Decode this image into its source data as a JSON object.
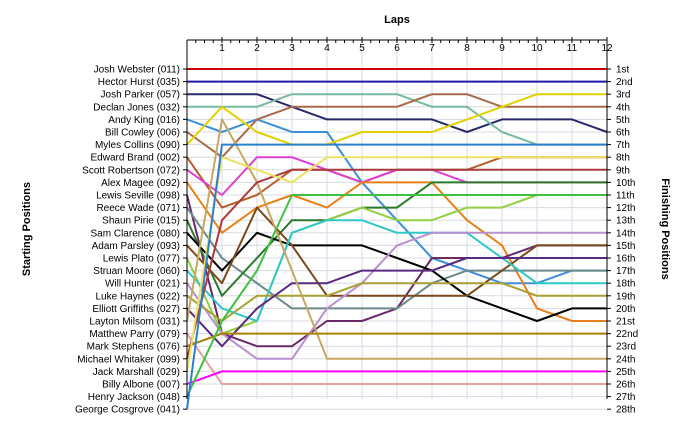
{
  "chart_data": {
    "type": "line",
    "title": "",
    "xlabel": "Laps",
    "ylabel_left": "Starting Positions",
    "ylabel_right": "Finishing Positions",
    "laps": [
      "1",
      "2",
      "3",
      "4",
      "5",
      "6",
      "7",
      "8",
      "9",
      "10",
      "11",
      "12"
    ],
    "x": [
      0,
      1,
      2,
      3,
      4,
      5,
      6,
      7,
      8,
      9,
      10,
      11,
      12
    ],
    "ylim": [
      1,
      28
    ],
    "starting_labels": [
      "Josh Webster (011)",
      "Hector Hurst (035)",
      "Josh Parker (057)",
      "Declan Jones (032)",
      "Andy King (016)",
      "Bill Cowley (006)",
      "Myles Collins (090)",
      "Edward Brand (002)",
      "Scott Robertson (072)",
      "Alex Magee (092)",
      "Lewis Seville (098)",
      "Reece Wade (071)",
      "Shaun Pirie (015)",
      "Sam Clarence (080)",
      "Adam Parsley (093)",
      "Lewis Plato (077)",
      "Struan Moore (060)",
      "Will Hunter (021)",
      "Luke Haynes (022)",
      "Elliott Griffiths (027)",
      "Layton Milsom (031)",
      "Matthew Parry (079)",
      "Mark Stephens (076)",
      "Michael Whitaker (099)",
      "Jack Marshall (029)",
      "Billy Albone (007)",
      "Henry Jackson (048)",
      "George Cosgrove (041)"
    ],
    "finishing_labels": [
      "1st",
      "2nd",
      "3rd",
      "4th",
      "5th",
      "6th",
      "7th",
      "8th",
      "9th",
      "10th",
      "11th",
      "12th",
      "13th",
      "14th",
      "15th",
      "16th",
      "17th",
      "18th",
      "19th",
      "20th",
      "21st",
      "22nd",
      "23rd",
      "24th",
      "25th",
      "26th",
      "27th",
      "28th"
    ],
    "series": [
      {
        "color": "#cc0000",
        "values": [
          1,
          1,
          1,
          1,
          1,
          1,
          1,
          1,
          1,
          1,
          1,
          1,
          1
        ]
      },
      {
        "color": "#1a1aaa",
        "values": [
          2,
          2,
          2,
          2,
          2,
          2,
          2,
          2,
          2,
          2,
          2,
          2,
          2
        ]
      },
      {
        "color": "#2a2a6a",
        "values": [
          3,
          3,
          3,
          4,
          5,
          5,
          5,
          5,
          6,
          5,
          5,
          5,
          6
        ]
      },
      {
        "color": "#76bba0",
        "values": [
          4,
          4,
          4,
          3,
          3,
          3,
          3,
          4,
          4,
          6,
          7,
          7,
          7
        ]
      },
      {
        "color": "#3c8fdc",
        "values": [
          5,
          6,
          5,
          6,
          6,
          10,
          13,
          16,
          17,
          18,
          18,
          17,
          17
        ]
      },
      {
        "color": "#a86a4a",
        "values": [
          6,
          8,
          5,
          4,
          4,
          4,
          4,
          3,
          3,
          4,
          4,
          4,
          4
        ]
      },
      {
        "color": "#e3d000",
        "values": [
          7,
          4,
          6,
          7,
          7,
          6,
          6,
          6,
          5,
          4,
          3,
          3,
          3
        ]
      },
      {
        "color": "#b85c28",
        "values": [
          8,
          12,
          11,
          9,
          9,
          10,
          9,
          9,
          9,
          8,
          8,
          8,
          8
        ]
      },
      {
        "color": "#dd3fd6",
        "values": [
          9,
          11,
          8,
          8,
          9,
          10,
          9,
          9,
          10,
          10,
          10,
          10,
          10
        ]
      },
      {
        "color": "#e8801a",
        "values": [
          10,
          14,
          12,
          11,
          12,
          10,
          10,
          10,
          13,
          15,
          20,
          21,
          21
        ]
      },
      {
        "color": "#6a2a6a",
        "values": [
          11,
          22,
          23,
          23,
          21,
          21,
          20,
          16,
          16,
          16,
          15,
          15,
          15
        ]
      },
      {
        "color": "#6a8a8a",
        "values": [
          12,
          16,
          18,
          20,
          20,
          20,
          20,
          18,
          17,
          17,
          17,
          17,
          17
        ]
      },
      {
        "color": "#2a7a2a",
        "values": [
          13,
          19,
          16,
          13,
          13,
          12,
          12,
          10,
          10,
          10,
          10,
          10,
          10
        ]
      },
      {
        "color": "#000000",
        "values": [
          14,
          17,
          14,
          15,
          15,
          15,
          16,
          17,
          19,
          20,
          21,
          20,
          20
        ]
      },
      {
        "color": "#7a4a1a",
        "values": [
          15,
          18,
          12,
          15,
          19,
          19,
          19,
          19,
          19,
          17,
          15,
          15,
          15
        ]
      },
      {
        "color": "#90d040",
        "values": [
          16,
          22,
          21,
          14,
          13,
          12,
          13,
          13,
          12,
          12,
          11,
          11,
          11
        ]
      },
      {
        "color": "#2ec8c8",
        "values": [
          17,
          20,
          21,
          14,
          13,
          13,
          14,
          14,
          14,
          16,
          18,
          18,
          18
        ]
      },
      {
        "color": "#b98fd0",
        "values": [
          18,
          22,
          24,
          24,
          20,
          18,
          15,
          14,
          14,
          14,
          14,
          14,
          14
        ]
      },
      {
        "color": "#a8a030",
        "values": [
          19,
          21,
          19,
          19,
          19,
          18,
          18,
          18,
          18,
          18,
          19,
          19,
          19
        ]
      },
      {
        "color": "#5a2a80",
        "values": [
          20,
          23,
          20,
          18,
          18,
          17,
          17,
          17,
          16,
          16,
          16,
          16,
          16
        ]
      },
      {
        "color": "#c8a860",
        "values": [
          21,
          5,
          10,
          17,
          24,
          24,
          24,
          24,
          24,
          24,
          24,
          24,
          24
        ]
      },
      {
        "color": "#e8a0a0",
        "values": [
          22,
          26,
          26,
          26,
          26,
          26,
          26,
          26,
          26,
          26,
          26,
          26,
          26
        ]
      },
      {
        "color": "#aa8000",
        "values": [
          23,
          22,
          22,
          22,
          22,
          22,
          22,
          22,
          22,
          22,
          22,
          22,
          22
        ]
      },
      {
        "color": "#aa3a3a",
        "values": [
          24,
          13,
          10,
          9,
          9,
          9,
          9,
          9,
          9,
          9,
          9,
          9,
          9
        ]
      },
      {
        "color": "#f0e060",
        "values": [
          25,
          8,
          9,
          10,
          8,
          8,
          8,
          8,
          8,
          8,
          8,
          8,
          8
        ]
      },
      {
        "color": "#ff00ff",
        "values": [
          26,
          25,
          25,
          25,
          25,
          25,
          25,
          25,
          25,
          25,
          25,
          25,
          25
        ]
      },
      {
        "color": "#40c040",
        "values": [
          27,
          21,
          17,
          11,
          11,
          11,
          11,
          11,
          11,
          11,
          11,
          11,
          11
        ]
      },
      {
        "color": "#2a80d0",
        "values": [
          28,
          7,
          7,
          7,
          7,
          7,
          7,
          7,
          7,
          7,
          7,
          7,
          7
        ]
      }
    ]
  }
}
